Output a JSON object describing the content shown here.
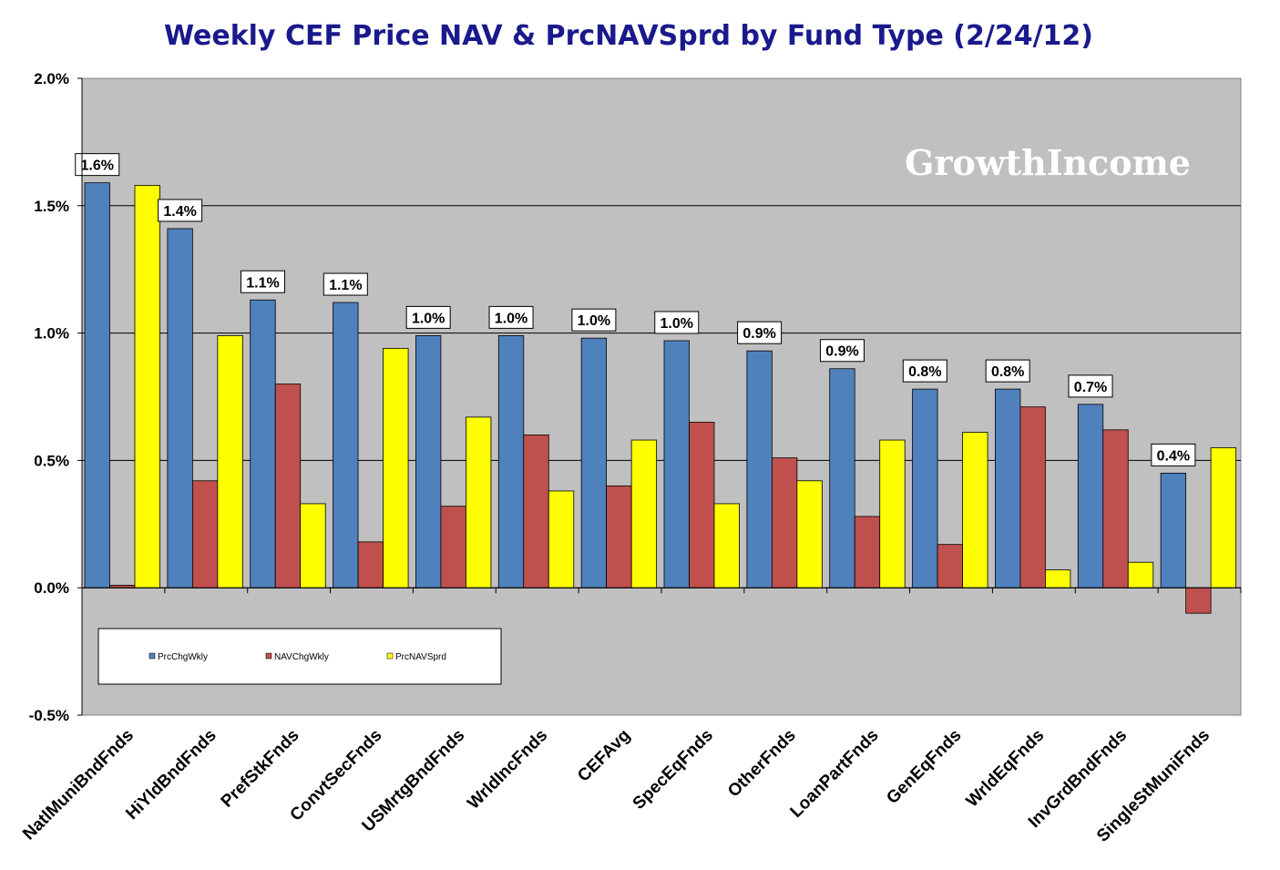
{
  "chart_data": {
    "type": "bar",
    "title": "Weekly CEF Price NAV & PrcNAVSprd by Fund Type  (2/24/12)",
    "watermark": "GrowthIncome",
    "categories": [
      "NatlMuniBndFnds",
      "HiYldBndFnds",
      "PrefStkFnds",
      "ConvtSecFnds",
      "USMrtgBndFnds",
      "WrldIncFnds",
      "CEFAvg",
      "SpecEqFnds",
      "OtherFnds",
      "LoanPartFnds",
      "GenEqFnds",
      "WrldEqFnds",
      "InvGrdBndFnds",
      "SingleStMuniFnds"
    ],
    "series": [
      {
        "name": "PrcChgWkly",
        "color": "#4f81bd",
        "values": [
          1.59,
          1.41,
          1.13,
          1.12,
          0.99,
          0.99,
          0.98,
          0.97,
          0.93,
          0.86,
          0.78,
          0.78,
          0.72,
          0.45
        ]
      },
      {
        "name": "NAVChgWkly",
        "color": "#c0504d",
        "values": [
          0.01,
          0.42,
          0.8,
          0.18,
          0.32,
          0.6,
          0.4,
          0.65,
          0.51,
          0.28,
          0.17,
          0.71,
          0.62,
          -0.1
        ]
      },
      {
        "name": "PrcNAVSprd",
        "color": "#ffff00",
        "values": [
          1.58,
          0.99,
          0.33,
          0.94,
          0.67,
          0.38,
          0.58,
          0.33,
          0.42,
          0.58,
          0.61,
          0.07,
          0.1,
          0.55
        ]
      }
    ],
    "data_labels": [
      "1.6%",
      "1.4%",
      "1.1%",
      "1.1%",
      "1.0%",
      "1.0%",
      "1.0%",
      "1.0%",
      "0.9%",
      "0.9%",
      "0.8%",
      "0.8%",
      "0.7%",
      "0.4%"
    ],
    "yticks": [
      "2.0%",
      "1.5%",
      "1.0%",
      "0.5%",
      "0.0%",
      "-0.5%"
    ],
    "ylim": [
      -0.5,
      2.0
    ],
    "grid": true,
    "legend_position": "bottom-left",
    "plot_bg": "#c0c0c0"
  }
}
